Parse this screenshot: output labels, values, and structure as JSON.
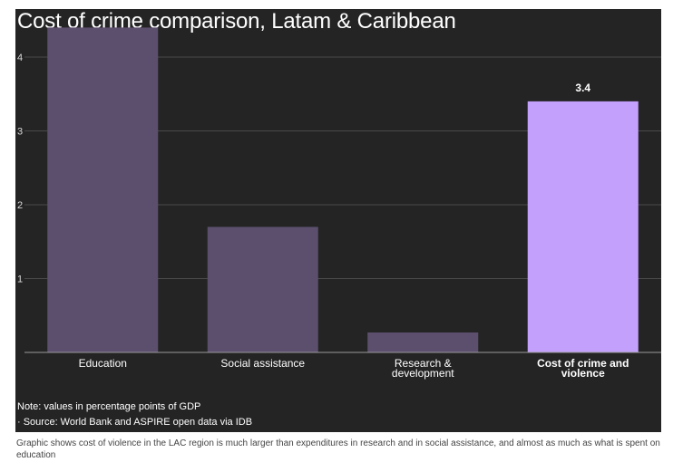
{
  "chart_data": {
    "type": "bar",
    "title": "Cost of crime comparison, Latam & Caribbean",
    "categories": [
      "Education",
      "Social assistance",
      "Research & development",
      "Cost of crime and violence"
    ],
    "category_lines": [
      [
        "Education"
      ],
      [
        "Social assistance"
      ],
      [
        "Research &",
        "development"
      ],
      [
        "Cost of crime and",
        "violence"
      ]
    ],
    "values": [
      4.4,
      1.7,
      0.27,
      3.4
    ],
    "highlight_index": 3,
    "data_labels": [
      "",
      "",
      "",
      "3.4"
    ],
    "yticks": [
      1,
      2,
      3,
      4
    ],
    "ylim": [
      0,
      4.65
    ],
    "grid": true,
    "legend": "none",
    "colors": {
      "background": "#242424",
      "bar": "#5c4f6e",
      "highlight": "#c3a0fb",
      "text": "#ffffff",
      "tick_text": "#d8d8d8",
      "grid": "#4a4a4a",
      "axis": "#9a9a9a"
    }
  },
  "note": "Note: values in percentage points of GDP",
  "source": "· Source: World Bank and ASPIRE open data via IDB",
  "caption": "Graphic shows cost of violence in the LAC region is much larger than expenditures in research and in social assistance, and almost as much as what is spent on education"
}
